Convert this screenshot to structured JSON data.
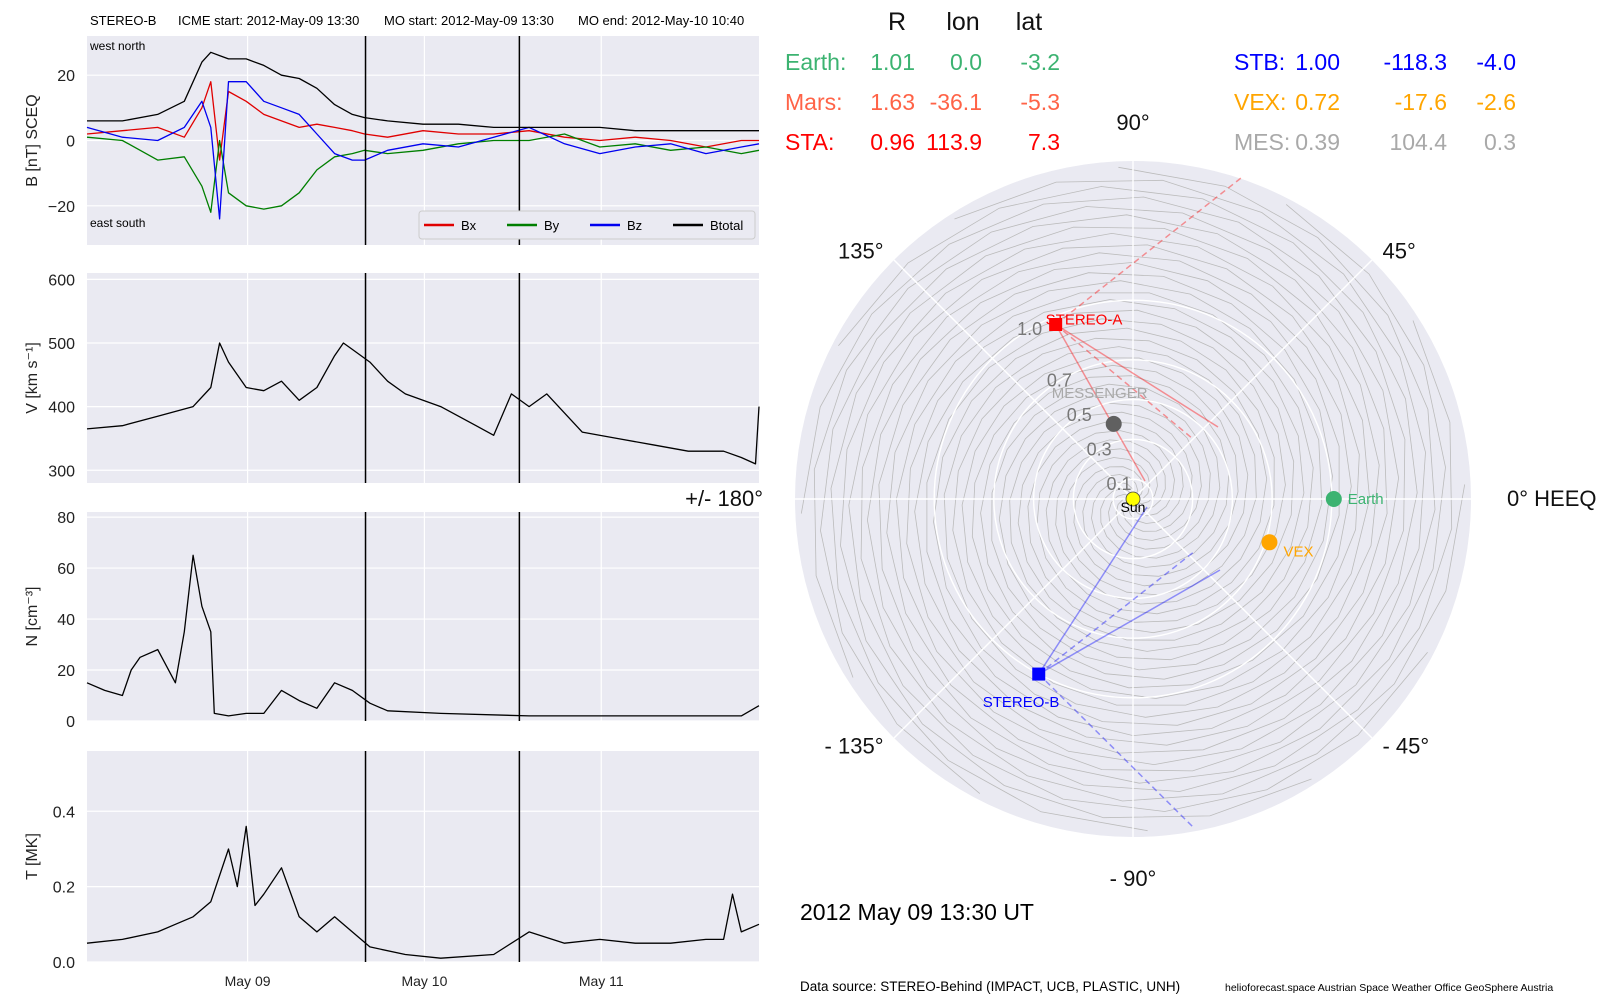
{
  "header": {
    "spacecraft": "STEREO-B",
    "icme_start": "ICME start: 2012-May-09 13:30",
    "mo_start": "MO start: 2012-May-09 13:30",
    "mo_end": "MO end: 2012-May-10 10:40"
  },
  "footer": {
    "date_label": "2012 May 09  13:30 UT",
    "data_source": "Data source: STEREO-Behind (IMPACT, UCB, PLASTIC, UNH)",
    "credits": "helioforecast.space   Austrian Space Weather Office   GeoSphere Austria"
  },
  "colors": {
    "panel_bg": "#EAEAF2",
    "bx": "#E00000",
    "by": "#007F00",
    "bz": "#0000F0",
    "btot": "#000000",
    "earth": "#3CB371",
    "mars": "#FF6347",
    "sta": "#FF0000",
    "stb": "#0000FF",
    "vex": "#FFA500",
    "mes": "#A9A9A9",
    "mes_marker": "#606060",
    "sun": "#FFFF00"
  },
  "position_table": {
    "headers": [
      "R",
      "lon",
      "lat"
    ],
    "rows_left": [
      {
        "name": "Earth:",
        "R": "1.01",
        "lon": "0.0",
        "lat": "-3.2",
        "color_key": "earth"
      },
      {
        "name": "Mars:",
        "R": "1.63",
        "lon": "-36.1",
        "lat": "-5.3",
        "color_key": "mars"
      },
      {
        "name": "STA:",
        "R": "0.96",
        "lon": "113.9",
        "lat": "7.3",
        "color_key": "sta"
      }
    ],
    "rows_right": [
      {
        "name": "STB:",
        "R": "1.00",
        "lon": "-118.3",
        "lat": "-4.0",
        "color_key": "stb"
      },
      {
        "name": "VEX:",
        "R": "0.72",
        "lon": "-17.6",
        "lat": "-2.6",
        "color_key": "vex"
      },
      {
        "name": "MES:",
        "R": "0.39",
        "lon": "104.4",
        "lat": "0.3",
        "color_key": "mes"
      }
    ]
  },
  "chart_data": [
    {
      "type": "line",
      "panel": "B",
      "ylabel": "B [nT] SCEQ",
      "ylim": [
        -32,
        32
      ],
      "yticks": [
        "20",
        "0",
        "−20"
      ],
      "yticks_values": [
        20,
        0,
        -20
      ],
      "corner_labels": {
        "top_left": "west    north",
        "bottom_left": "east    south"
      },
      "legend": [
        "Bx",
        "By",
        "Bz",
        "Btotal"
      ],
      "legend_position": "lower-right",
      "x_days_range": [
        0,
        3.8
      ],
      "x": [
        0,
        0.2,
        0.4,
        0.55,
        0.65,
        0.7,
        0.75,
        0.8,
        0.9,
        1.0,
        1.1,
        1.2,
        1.3,
        1.4,
        1.5,
        1.57,
        1.7,
        1.9,
        2.1,
        2.3,
        2.5,
        2.7,
        2.9,
        3.1,
        3.3,
        3.5,
        3.7,
        3.8
      ],
      "series": [
        {
          "name": "Bx",
          "color_key": "bx",
          "values": [
            2,
            3,
            4,
            1,
            10,
            18,
            -6,
            15,
            12,
            8,
            6,
            4,
            5,
            4,
            3,
            2,
            1,
            3,
            2,
            2,
            3,
            1,
            0,
            1,
            0,
            -2,
            0,
            0
          ]
        },
        {
          "name": "By",
          "color_key": "by",
          "values": [
            1,
            0,
            -6,
            -5,
            -14,
            -22,
            0,
            -16,
            -20,
            -21,
            -20,
            -16,
            -9,
            -5,
            -4,
            -3,
            -4,
            -3,
            -1,
            0,
            0,
            2,
            -2,
            -1,
            -3,
            -2,
            -4,
            -3
          ]
        },
        {
          "name": "Bz",
          "color_key": "bz",
          "values": [
            4,
            1,
            0,
            4,
            12,
            4,
            -24,
            18,
            18,
            12,
            10,
            8,
            2,
            -4,
            -6,
            -6,
            -3,
            -1,
            -2,
            1,
            4,
            -1,
            -4,
            -2,
            -1,
            -4,
            -2,
            -1
          ]
        },
        {
          "name": "Btotal",
          "color_key": "btot",
          "values": [
            6,
            6,
            8,
            12,
            24,
            27,
            26,
            25,
            25,
            23,
            20,
            19,
            16,
            11,
            8,
            7,
            6,
            5,
            5,
            4,
            4,
            4,
            4,
            3,
            3,
            3,
            3,
            3
          ]
        }
      ]
    },
    {
      "type": "line",
      "panel": "V",
      "ylabel": "V [km s⁻¹]",
      "ylim": [
        280,
        610
      ],
      "yticks": [
        "600",
        "500",
        "400",
        "300"
      ],
      "yticks_values": [
        600,
        500,
        400,
        300
      ],
      "x": [
        0,
        0.2,
        0.4,
        0.6,
        0.7,
        0.75,
        0.8,
        0.9,
        1.0,
        1.1,
        1.2,
        1.3,
        1.4,
        1.45,
        1.5,
        1.6,
        1.7,
        1.8,
        2.0,
        2.2,
        2.3,
        2.4,
        2.5,
        2.6,
        2.8,
        3.0,
        3.2,
        3.4,
        3.6,
        3.7,
        3.78,
        3.8
      ],
      "series": [
        {
          "name": "",
          "color_key": "btot",
          "values": [
            365,
            370,
            385,
            400,
            430,
            500,
            470,
            430,
            425,
            440,
            410,
            430,
            480,
            500,
            490,
            470,
            440,
            420,
            400,
            370,
            355,
            420,
            400,
            420,
            360,
            350,
            340,
            330,
            330,
            320,
            310,
            400
          ]
        }
      ]
    },
    {
      "type": "line",
      "panel": "N",
      "ylabel": "N [cm⁻³]",
      "ylim": [
        0,
        82
      ],
      "yticks": [
        "80",
        "60",
        "40",
        "20",
        "0"
      ],
      "yticks_values": [
        80,
        60,
        40,
        20,
        0
      ],
      "x": [
        0,
        0.1,
        0.2,
        0.25,
        0.3,
        0.4,
        0.5,
        0.55,
        0.6,
        0.65,
        0.7,
        0.72,
        0.8,
        0.9,
        1.0,
        1.1,
        1.2,
        1.3,
        1.4,
        1.5,
        1.6,
        1.7,
        2.0,
        2.5,
        3.0,
        3.5,
        3.7,
        3.8
      ],
      "series": [
        {
          "name": "",
          "color_key": "btot",
          "values": [
            15,
            12,
            10,
            20,
            25,
            28,
            15,
            35,
            65,
            45,
            35,
            3,
            2,
            3,
            3,
            12,
            8,
            5,
            15,
            12,
            7,
            4,
            3,
            2,
            2,
            2,
            2,
            6
          ]
        }
      ]
    },
    {
      "type": "line",
      "panel": "T",
      "ylabel": "T [MK]",
      "ylim": [
        0,
        0.56
      ],
      "yticks": [
        "0.4",
        "0.2",
        "0.0"
      ],
      "yticks_values": [
        0.4,
        0.2,
        0
      ],
      "xticks": [
        "May 09",
        "May 10",
        "May 11"
      ],
      "xticks_values": [
        0.908,
        1.908,
        2.908
      ],
      "x": [
        0,
        0.2,
        0.4,
        0.5,
        0.6,
        0.7,
        0.8,
        0.85,
        0.9,
        0.95,
        1.0,
        1.1,
        1.2,
        1.3,
        1.4,
        1.5,
        1.6,
        1.8,
        2.0,
        2.3,
        2.5,
        2.7,
        2.9,
        3.1,
        3.3,
        3.5,
        3.6,
        3.65,
        3.7,
        3.8
      ],
      "series": [
        {
          "name": "",
          "color_key": "btot",
          "values": [
            0.05,
            0.06,
            0.08,
            0.1,
            0.12,
            0.16,
            0.3,
            0.2,
            0.36,
            0.15,
            0.18,
            0.25,
            0.12,
            0.08,
            0.12,
            0.08,
            0.04,
            0.02,
            0.01,
            0.02,
            0.08,
            0.05,
            0.06,
            0.05,
            0.05,
            0.06,
            0.06,
            0.18,
            0.08,
            0.1
          ]
        }
      ]
    },
    {
      "type": "scatter",
      "panel": "orbit",
      "projection": "polar",
      "radial_ticks": [
        "0.1",
        "0.3",
        "0.5",
        "0.7",
        "1.0"
      ],
      "radial_ticks_values": [
        0.1,
        0.3,
        0.5,
        0.7,
        1.0
      ],
      "angle_labels": [
        {
          "text": "0° HEEQ",
          "angle": 0
        },
        {
          "text": "45°",
          "angle": 45
        },
        {
          "text": "90°",
          "angle": 90
        },
        {
          "text": "135°",
          "angle": 135
        },
        {
          "text": "+/- 180°",
          "angle": 180
        },
        {
          "text": "- 135°",
          "angle": 225
        },
        {
          "text": "- 90°",
          "angle": 270
        },
        {
          "text": "- 45°",
          "angle": 315
        }
      ],
      "rmax": 1.7,
      "bodies": [
        {
          "label": "Sun",
          "r": 0,
          "lon": 0,
          "color_key": "sun",
          "marker": "circle"
        },
        {
          "label": "STEREO-A",
          "r": 0.96,
          "lon": 113.9,
          "color_key": "sta",
          "marker": "square"
        },
        {
          "label": "STEREO-B",
          "r": 1.0,
          "lon": -118.3,
          "color_key": "stb",
          "marker": "square"
        },
        {
          "label": "MESSENGER",
          "r": 0.39,
          "lon": 104.4,
          "color_key": "mes_marker",
          "label_color_key": "mes",
          "marker": "circle"
        },
        {
          "label": "Earth",
          "r": 1.01,
          "lon": 0.0,
          "color_key": "earth",
          "marker": "circle"
        },
        {
          "label": "VEX",
          "r": 0.72,
          "lon": -17.6,
          "color_key": "vex",
          "marker": "circle"
        }
      ]
    }
  ]
}
